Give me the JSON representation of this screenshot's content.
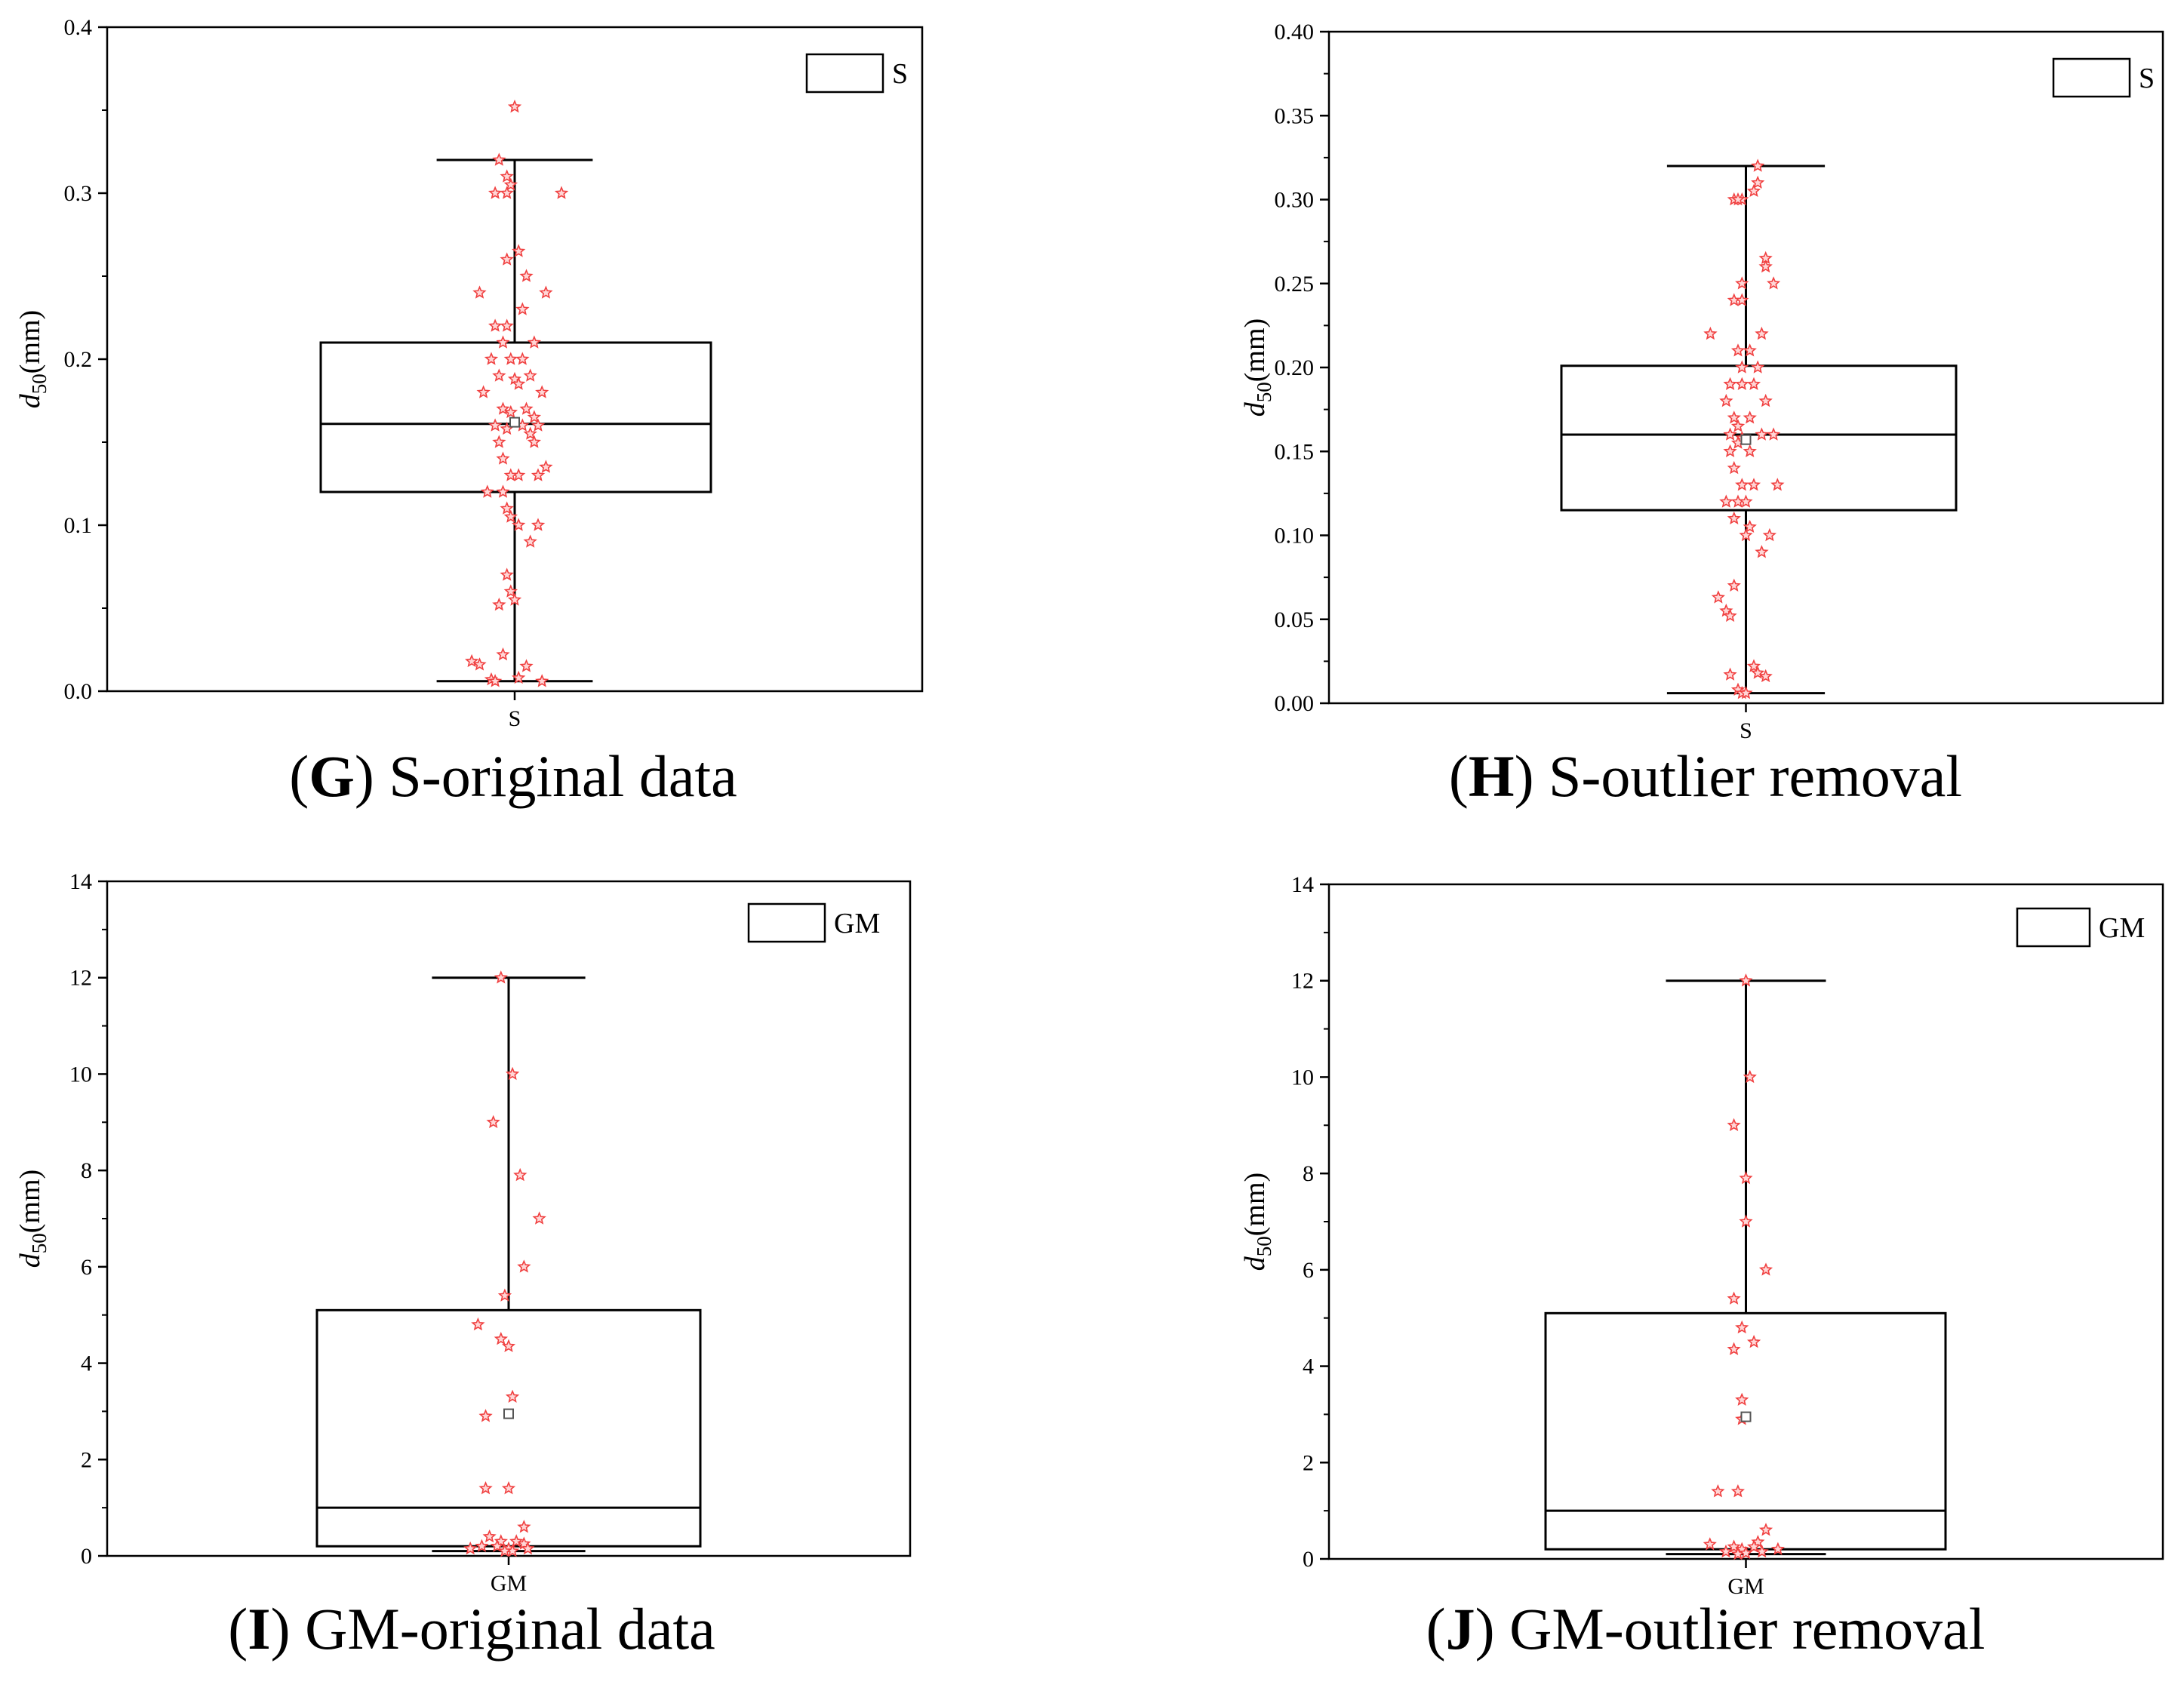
{
  "chart_data": [
    {
      "type": "box",
      "caption": {
        "letter": "G",
        "text": "S-original data"
      },
      "ylabel": {
        "main": "d",
        "sub": "50",
        "unit": "(mm)"
      },
      "ylim": [
        0,
        0.4
      ],
      "yticks": [
        "0.0",
        "0.1",
        "0.2",
        "0.3",
        "0.4"
      ],
      "yminor_step": 0.05,
      "category": "S",
      "legend": {
        "label": "S",
        "position": "top-right"
      },
      "box": {
        "whisker_low": 0.006,
        "q1": 0.12,
        "median": 0.161,
        "q3": 0.21,
        "whisker_high": 0.32,
        "mean": 0.162
      },
      "points": [
        [
          0.0,
          0.352
        ],
        [
          -0.04,
          0.32
        ],
        [
          -0.01,
          0.305
        ],
        [
          -0.05,
          0.3
        ],
        [
          -0.02,
          0.3
        ],
        [
          0.12,
          0.3
        ],
        [
          -0.02,
          0.31
        ],
        [
          -0.02,
          0.26
        ],
        [
          0.01,
          0.265
        ],
        [
          0.03,
          0.25
        ],
        [
          0.02,
          0.23
        ],
        [
          -0.09,
          0.24
        ],
        [
          0.08,
          0.24
        ],
        [
          -0.05,
          0.22
        ],
        [
          -0.02,
          0.22
        ],
        [
          0.05,
          0.21
        ],
        [
          -0.03,
          0.21
        ],
        [
          -0.06,
          0.2
        ],
        [
          -0.01,
          0.2
        ],
        [
          0.02,
          0.2
        ],
        [
          0.04,
          0.19
        ],
        [
          -0.04,
          0.19
        ],
        [
          0.0,
          0.188
        ],
        [
          0.01,
          0.185
        ],
        [
          0.07,
          0.18
        ],
        [
          -0.08,
          0.18
        ],
        [
          -0.03,
          0.17
        ],
        [
          0.03,
          0.17
        ],
        [
          -0.01,
          0.168
        ],
        [
          0.05,
          0.165
        ],
        [
          -0.05,
          0.16
        ],
        [
          0.02,
          0.16
        ],
        [
          0.06,
          0.16
        ],
        [
          -0.02,
          0.158
        ],
        [
          0.04,
          0.155
        ],
        [
          -0.04,
          0.15
        ],
        [
          0.05,
          0.15
        ],
        [
          -0.03,
          0.14
        ],
        [
          0.08,
          0.135
        ],
        [
          0.01,
          0.13
        ],
        [
          -0.01,
          0.13
        ],
        [
          0.06,
          0.13
        ],
        [
          -0.07,
          0.12
        ],
        [
          -0.03,
          0.12
        ],
        [
          -0.02,
          0.11
        ],
        [
          -0.01,
          0.105
        ],
        [
          0.01,
          0.1
        ],
        [
          0.06,
          0.1
        ],
        [
          0.04,
          0.09
        ],
        [
          -0.02,
          0.07
        ],
        [
          -0.01,
          0.06
        ],
        [
          0.0,
          0.055
        ],
        [
          -0.04,
          0.052
        ],
        [
          -0.03,
          0.022
        ],
        [
          -0.11,
          0.018
        ],
        [
          -0.09,
          0.016
        ],
        [
          0.03,
          0.015
        ],
        [
          -0.06,
          0.007
        ],
        [
          0.01,
          0.008
        ],
        [
          0.07,
          0.006
        ],
        [
          -0.05,
          0.006
        ]
      ]
    },
    {
      "type": "box",
      "caption": {
        "letter": "H",
        "text": "S-outlier removal"
      },
      "ylabel": {
        "main": "d",
        "sub": "50",
        "unit": "(mm)"
      },
      "ylim": [
        0,
        0.4
      ],
      "yticks": [
        "0.00",
        "0.05",
        "0.10",
        "0.15",
        "0.20",
        "0.25",
        "0.30",
        "0.35",
        "0.40"
      ],
      "yminor_step": 0.025,
      "category": "S",
      "legend": {
        "label": "S",
        "position": "top-right"
      },
      "box": {
        "whisker_low": 0.006,
        "q1": 0.115,
        "median": 0.16,
        "q3": 0.201,
        "whisker_high": 0.32,
        "mean": 0.157
      },
      "points": [
        [
          0.03,
          0.32
        ],
        [
          0.03,
          0.31
        ],
        [
          0.02,
          0.305
        ],
        [
          -0.03,
          0.3
        ],
        [
          -0.01,
          0.3
        ],
        [
          -0.02,
          0.3
        ],
        [
          0.05,
          0.265
        ],
        [
          0.05,
          0.26
        ],
        [
          0.07,
          0.25
        ],
        [
          -0.01,
          0.25
        ],
        [
          -0.03,
          0.24
        ],
        [
          -0.01,
          0.24
        ],
        [
          -0.09,
          0.22
        ],
        [
          0.04,
          0.22
        ],
        [
          0.01,
          0.21
        ],
        [
          -0.02,
          0.21
        ],
        [
          -0.01,
          0.2
        ],
        [
          0.03,
          0.2
        ],
        [
          -0.04,
          0.19
        ],
        [
          0.02,
          0.19
        ],
        [
          -0.01,
          0.19
        ],
        [
          -0.05,
          0.18
        ],
        [
          0.05,
          0.18
        ],
        [
          -0.03,
          0.17
        ],
        [
          0.01,
          0.17
        ],
        [
          -0.02,
          0.165
        ],
        [
          0.07,
          0.16
        ],
        [
          -0.04,
          0.16
        ],
        [
          0.04,
          0.16
        ],
        [
          -0.01,
          0.158
        ],
        [
          -0.02,
          0.155
        ],
        [
          -0.04,
          0.15
        ],
        [
          0.01,
          0.15
        ],
        [
          -0.03,
          0.14
        ],
        [
          0.02,
          0.13
        ],
        [
          0.08,
          0.13
        ],
        [
          -0.01,
          0.13
        ],
        [
          -0.05,
          0.12
        ],
        [
          -0.02,
          0.12
        ],
        [
          0.0,
          0.12
        ],
        [
          0.01,
          0.105
        ],
        [
          -0.03,
          0.11
        ],
        [
          0.0,
          0.1
        ],
        [
          0.06,
          0.1
        ],
        [
          0.04,
          0.09
        ],
        [
          -0.03,
          0.07
        ],
        [
          -0.05,
          0.055
        ],
        [
          -0.04,
          0.052
        ],
        [
          -0.07,
          0.063
        ],
        [
          0.02,
          0.022
        ],
        [
          0.03,
          0.018
        ],
        [
          -0.04,
          0.017
        ],
        [
          0.05,
          0.016
        ],
        [
          -0.02,
          0.008
        ],
        [
          -0.01,
          0.006
        ],
        [
          0.0,
          0.006
        ]
      ]
    },
    {
      "type": "box",
      "caption": {
        "letter": "I",
        "text": "GM-original data"
      },
      "ylabel": {
        "main": "d",
        "sub": "50",
        "unit": "(mm)"
      },
      "ylim": [
        0,
        14
      ],
      "yticks": [
        "0",
        "2",
        "4",
        "6",
        "8",
        "10",
        "12",
        "14"
      ],
      "yminor_step": 1,
      "category": "GM",
      "legend": {
        "label": "GM",
        "position": "top-right"
      },
      "box": {
        "whisker_low": 0.1,
        "q1": 0.2,
        "median": 1.0,
        "q3": 5.1,
        "whisker_high": 12.0,
        "mean": 2.95
      },
      "points": [
        [
          -0.02,
          12.0
        ],
        [
          0.01,
          10.0
        ],
        [
          -0.04,
          9.0
        ],
        [
          0.03,
          7.9
        ],
        [
          0.08,
          7.0
        ],
        [
          0.04,
          6.0
        ],
        [
          -0.01,
          5.4
        ],
        [
          -0.08,
          4.8
        ],
        [
          -0.02,
          4.5
        ],
        [
          0.0,
          4.35
        ],
        [
          0.01,
          3.3
        ],
        [
          -0.06,
          2.9
        ],
        [
          -0.06,
          1.4
        ],
        [
          0.0,
          1.4
        ],
        [
          0.04,
          0.6
        ],
        [
          -0.05,
          0.4
        ],
        [
          -0.02,
          0.3
        ],
        [
          0.02,
          0.3
        ],
        [
          0.04,
          0.25
        ],
        [
          -0.07,
          0.2
        ],
        [
          -0.03,
          0.2
        ],
        [
          0.0,
          0.15
        ],
        [
          0.05,
          0.15
        ],
        [
          -0.1,
          0.15
        ],
        [
          0.01,
          0.1
        ],
        [
          -0.01,
          0.1
        ]
      ]
    },
    {
      "type": "box",
      "caption": {
        "letter": "J",
        "text": "GM-outlier removal"
      },
      "ylabel": {
        "main": "d",
        "sub": "50",
        "unit": "(mm)"
      },
      "ylim": [
        0,
        14
      ],
      "yticks": [
        "0",
        "2",
        "4",
        "6",
        "8",
        "10",
        "12",
        "14"
      ],
      "yminor_step": 1,
      "category": "GM",
      "legend": {
        "label": "GM",
        "position": "top-right"
      },
      "box": {
        "whisker_low": 0.1,
        "q1": 0.2,
        "median": 1.0,
        "q3": 5.1,
        "whisker_high": 12.0,
        "mean": 2.95
      },
      "points": [
        [
          0.0,
          12.0
        ],
        [
          0.01,
          10.0
        ],
        [
          -0.03,
          9.0
        ],
        [
          0.0,
          7.9
        ],
        [
          0.0,
          7.0
        ],
        [
          0.05,
          6.0
        ],
        [
          -0.03,
          5.4
        ],
        [
          -0.01,
          4.8
        ],
        [
          -0.03,
          4.35
        ],
        [
          0.02,
          4.5
        ],
        [
          -0.01,
          3.3
        ],
        [
          -0.01,
          2.9
        ],
        [
          -0.07,
          1.4
        ],
        [
          -0.02,
          1.4
        ],
        [
          0.05,
          0.6
        ],
        [
          -0.09,
          0.3
        ],
        [
          -0.03,
          0.25
        ],
        [
          0.03,
          0.35
        ],
        [
          0.02,
          0.25
        ],
        [
          -0.01,
          0.2
        ],
        [
          0.08,
          0.2
        ],
        [
          -0.02,
          0.1
        ],
        [
          0.0,
          0.12
        ],
        [
          0.04,
          0.15
        ],
        [
          -0.05,
          0.15
        ]
      ]
    }
  ]
}
